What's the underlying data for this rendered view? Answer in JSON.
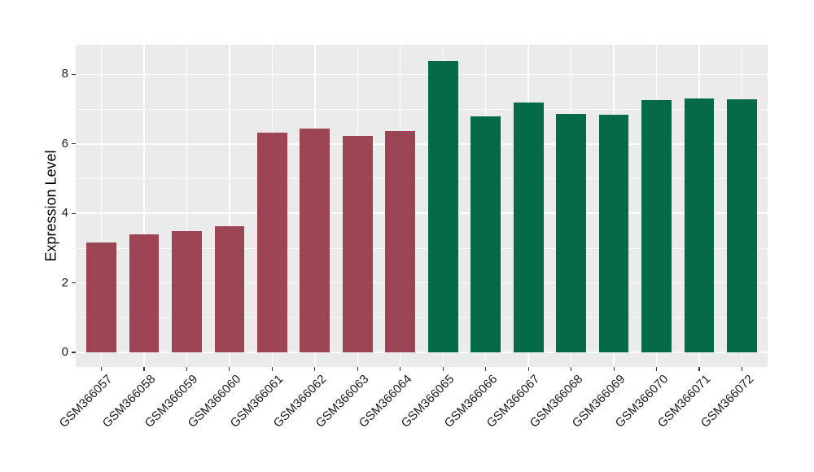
{
  "chart_data": {
    "type": "bar",
    "title": "",
    "xlabel": "",
    "ylabel": "Expression Level",
    "bars": [
      {
        "label": "GSM366057",
        "value": 3.15,
        "color": "#9B4453"
      },
      {
        "label": "GSM366058",
        "value": 3.39,
        "color": "#9B4453"
      },
      {
        "label": "GSM366059",
        "value": 3.48,
        "color": "#9B4453"
      },
      {
        "label": "GSM366060",
        "value": 3.63,
        "color": "#9B4453"
      },
      {
        "label": "GSM366061",
        "value": 6.33,
        "color": "#9B4453"
      },
      {
        "label": "GSM366062",
        "value": 6.45,
        "color": "#9B4453"
      },
      {
        "label": "GSM366063",
        "value": 6.22,
        "color": "#9B4453"
      },
      {
        "label": "GSM366064",
        "value": 6.38,
        "color": "#9B4453"
      },
      {
        "label": "GSM366065",
        "value": 8.39,
        "color": "#046A48"
      },
      {
        "label": "GSM366066",
        "value": 6.78,
        "color": "#046A48"
      },
      {
        "label": "GSM366067",
        "value": 7.18,
        "color": "#046A48"
      },
      {
        "label": "GSM366068",
        "value": 6.86,
        "color": "#046A48"
      },
      {
        "label": "GSM366069",
        "value": 6.84,
        "color": "#046A48"
      },
      {
        "label": "GSM366070",
        "value": 7.25,
        "color": "#046A48"
      },
      {
        "label": "GSM366071",
        "value": 7.3,
        "color": "#046A48"
      },
      {
        "label": "GSM366072",
        "value": 7.27,
        "color": "#046A48"
      }
    ],
    "group_colors": {
      "samples_1_to_8": "#9B4453",
      "samples_9_to_16": "#046A48"
    },
    "axis": {
      "yticks": [
        0,
        2,
        4,
        6,
        8
      ],
      "yticks_minor": [
        1,
        3,
        5,
        7
      ],
      "ylim": [
        -0.42,
        8.85
      ],
      "bar_width_fraction": 0.7,
      "x_label_angle_deg": 45
    },
    "style": {
      "panel_bg": "#EBEBEB",
      "grid_color": "#FFFFFF",
      "tick_color": "#333333",
      "text_color": "#1a1a1a",
      "outer_bg": "#FFFFFF",
      "legend": "none",
      "grid": "on"
    }
  }
}
